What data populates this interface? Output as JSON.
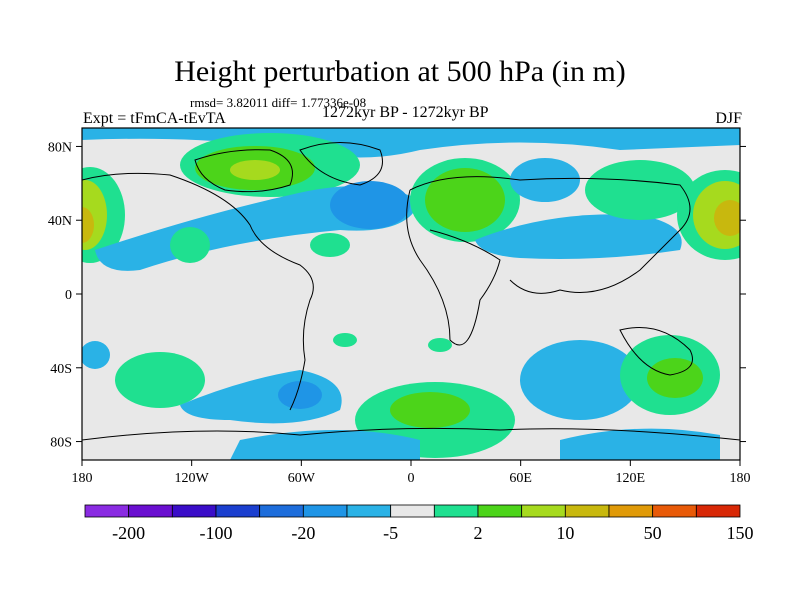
{
  "title": "Height perturbation at 500 hPa (in m)",
  "stats": "rmsd= 3.82011 diff= 1.77336e-08",
  "experiment": "Expt = tFmCA-tEvTA",
  "period": "1272kyr BP - 1272kyr BP",
  "season": "DJF",
  "lat_ticks": [
    "80N",
    "40N",
    "0",
    "40S",
    "80S"
  ],
  "lon_ticks": [
    "180",
    "120W",
    "60W",
    "0",
    "60E",
    "120E",
    "180"
  ],
  "colorbar": {
    "colors": [
      "#8a2be2",
      "#6a0fd0",
      "#3a0dc8",
      "#1b3fcf",
      "#1d6ddb",
      "#1f95e6",
      "#2ab2e6",
      "#e8e8e8",
      "#1fe090",
      "#4cd41a",
      "#a6da1e",
      "#c8b80e",
      "#e09a08",
      "#e85a08",
      "#d82806"
    ],
    "labels": [
      "-200",
      "-100",
      "-20",
      "-5",
      "2",
      "10",
      "50",
      "150"
    ]
  }
}
